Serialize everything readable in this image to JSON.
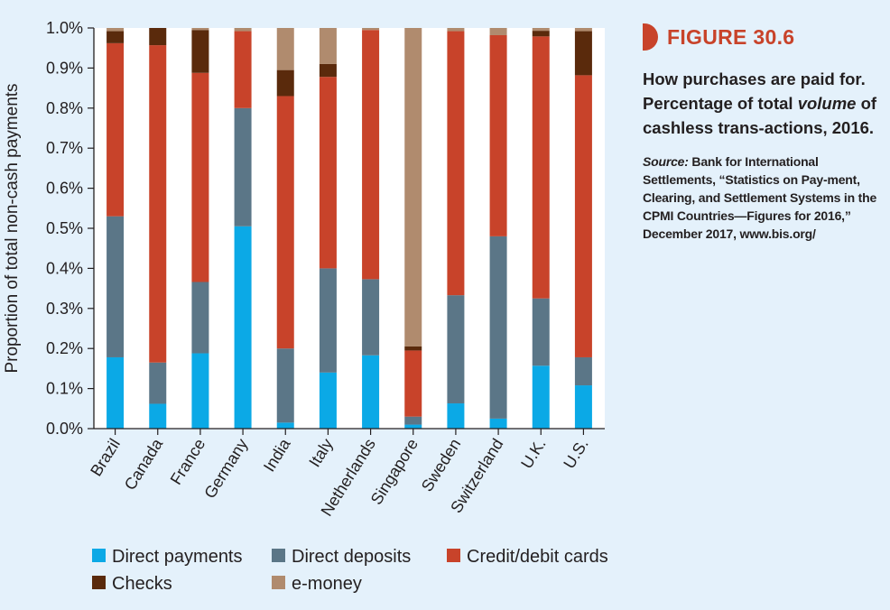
{
  "figure": {
    "number": "FIGURE 30.6",
    "caption_pre": "How purchases are paid for. Percentage of total ",
    "caption_em": "volume",
    "caption_post": " of cashless trans-actions, 2016.",
    "source_label": "Source:",
    "source_text": " Bank for International Settlements, “Statistics on Pay-ment, Clearing, and Settlement Systems in the CPMI Countries—Figures for 2016,” December 2017, www.bis.org/"
  },
  "colors": {
    "Direct payments": "#0ba9e6",
    "Direct deposits": "#5b7687",
    "Credit/debit cards": "#c8432a",
    "Checks": "#5a2a0c",
    "e-money": "#b08b6e",
    "plot_bg": "#ffffff",
    "page_bg": "#e4f1fb"
  },
  "chart_data": {
    "type": "bar",
    "stacked": true,
    "ylabel": "Proportion of total non-cash payments",
    "ylim": [
      0,
      1.0
    ],
    "yticks": [
      "0.0%",
      "0.1%",
      "0.2%",
      "0.3%",
      "0.4%",
      "0.5%",
      "0.6%",
      "0.7%",
      "0.8%",
      "0.9%",
      "1.0%"
    ],
    "categories": [
      "Brazil",
      "Canada",
      "France",
      "Germany",
      "India",
      "Italy",
      "Netherlands",
      "Singapore",
      "Sweden",
      "Switzerland",
      "U.K.",
      "U.S."
    ],
    "series": [
      {
        "name": "Direct payments",
        "values": [
          0.178,
          0.062,
          0.188,
          0.505,
          0.015,
          0.14,
          0.183,
          0.01,
          0.063,
          0.025,
          0.157,
          0.108
        ]
      },
      {
        "name": "Direct deposits",
        "values": [
          0.352,
          0.103,
          0.178,
          0.295,
          0.185,
          0.26,
          0.19,
          0.02,
          0.27,
          0.455,
          0.168,
          0.07
        ]
      },
      {
        "name": "Credit/debit cards",
        "values": [
          0.432,
          0.792,
          0.522,
          0.192,
          0.63,
          0.478,
          0.622,
          0.165,
          0.659,
          0.502,
          0.654,
          0.704
        ]
      },
      {
        "name": "Checks",
        "values": [
          0.03,
          0.043,
          0.107,
          0.0,
          0.065,
          0.032,
          0.0,
          0.01,
          0.0,
          0.0,
          0.014,
          0.11
        ]
      },
      {
        "name": "e-money",
        "values": [
          0.008,
          0.0,
          0.005,
          0.008,
          0.105,
          0.09,
          0.005,
          0.795,
          0.008,
          0.018,
          0.007,
          0.008
        ]
      }
    ],
    "legend_position": "bottom",
    "grid": false
  }
}
